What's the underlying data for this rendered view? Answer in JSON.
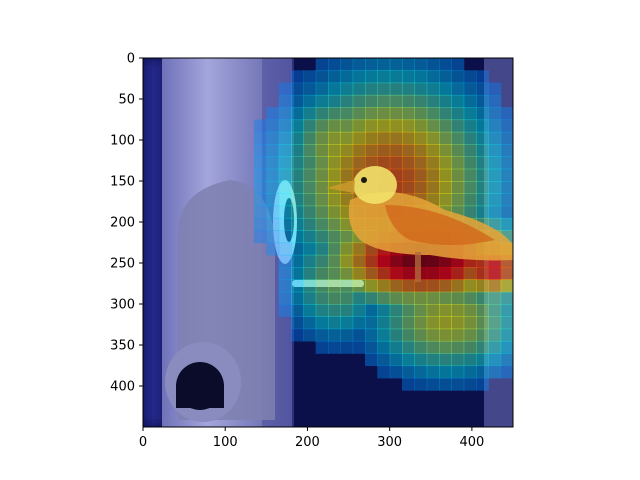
{
  "chart_data": {
    "type": "heatmap",
    "title": "",
    "xlabel": "",
    "ylabel": "",
    "xlim": [
      0,
      450
    ],
    "ylim": [
      450,
      0
    ],
    "xticks": [
      0,
      100,
      200,
      300,
      400
    ],
    "yticks": [
      0,
      50,
      100,
      150,
      200,
      250,
      300,
      350,
      400
    ],
    "colormap": "jet",
    "grid": false,
    "hotspots": [
      {
        "x": 340,
        "y": 245,
        "intensity": 1.0,
        "sx": 85,
        "sy": 40
      },
      {
        "x": 425,
        "y": 255,
        "intensity": 0.85,
        "sx": 35,
        "sy": 30
      },
      {
        "x": 300,
        "y": 150,
        "intensity": 0.75,
        "sx": 90,
        "sy": 90
      },
      {
        "x": 370,
        "y": 320,
        "intensity": 0.55,
        "sx": 70,
        "sy": 50
      },
      {
        "x": 240,
        "y": 110,
        "intensity": 0.55,
        "sx": 50,
        "sy": 55
      },
      {
        "x": 235,
        "y": 270,
        "intensity": 0.45,
        "sx": 45,
        "sy": 55
      }
    ]
  },
  "colors": {
    "background": "#0b0f4a",
    "pole": "#8e90cc",
    "pole_shadow": "#5e60a8",
    "bird_body": "#e5a53a",
    "bird_head": "#f2e26a",
    "axis": "#000000"
  }
}
